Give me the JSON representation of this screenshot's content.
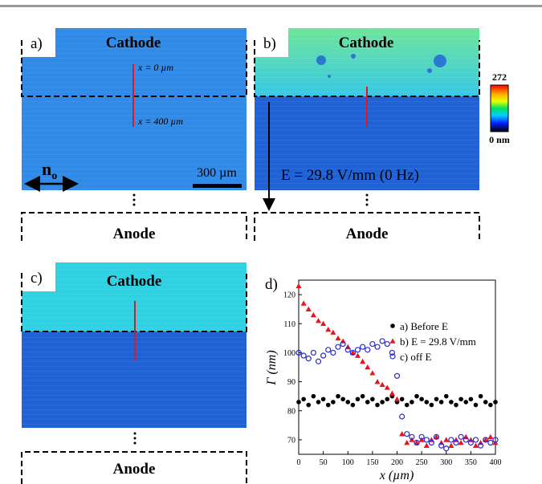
{
  "panels": {
    "a": {
      "label": "a)",
      "cathode": "Cathode",
      "anode": "Anode",
      "x_start": "x = 0 µm",
      "x_end": "x = 400 µm",
      "director": "n",
      "director_subscript": "o",
      "scale_bar": "300 µm"
    },
    "b": {
      "label": "b)",
      "cathode": "Cathode",
      "anode": "Anode",
      "field": "E = 29.8 V/mm (0 Hz)",
      "colorbar_max": "272",
      "colorbar_min": "0 nm"
    },
    "c": {
      "label": "c)",
      "cathode": "Cathode",
      "anode": "Anode"
    }
  },
  "chart_data": {
    "type": "scatter",
    "panel_label": "d)",
    "x_label": "x (µm)",
    "y_label": "Γ (nm)",
    "xlim": [
      0,
      400
    ],
    "ylim": [
      65,
      125
    ],
    "xticks": [
      0,
      50,
      100,
      150,
      200,
      250,
      300,
      350,
      400
    ],
    "yticks": [
      70,
      80,
      90,
      100,
      110,
      120
    ],
    "x": [
      0,
      10,
      20,
      30,
      40,
      50,
      60,
      70,
      80,
      90,
      100,
      110,
      120,
      130,
      140,
      150,
      160,
      170,
      180,
      190,
      200,
      210,
      220,
      230,
      240,
      250,
      260,
      270,
      280,
      290,
      300,
      310,
      320,
      330,
      340,
      350,
      360,
      370,
      380,
      390,
      400
    ],
    "series": [
      {
        "name": "a) Before E",
        "color": "#000000",
        "marker": "circle",
        "values": [
          83,
          84,
          82,
          85,
          83,
          84,
          82,
          83,
          85,
          84,
          83,
          82,
          84,
          85,
          83,
          84,
          82,
          83,
          84,
          85,
          83,
          84,
          82,
          83,
          85,
          84,
          83,
          82,
          84,
          83,
          85,
          83,
          82,
          84,
          83,
          84,
          82,
          85,
          83,
          82,
          83
        ]
      },
      {
        "name": "b) E = 29.8 V/mm",
        "color": "#e8141c",
        "marker": "triangle",
        "values": [
          123,
          117,
          115,
          113,
          111,
          110,
          108,
          107,
          105,
          104,
          102,
          100,
          99,
          97,
          95,
          93,
          90,
          89,
          88,
          86,
          84,
          72,
          69,
          70,
          69,
          70,
          68,
          70,
          71,
          69,
          70,
          68,
          70,
          69,
          71,
          70,
          68,
          69,
          70,
          71,
          69
        ]
      },
      {
        "name": "c) off E",
        "color": "#2a2ad0",
        "marker": "open-circle",
        "values": [
          100,
          99,
          98,
          100,
          97,
          99,
          101,
          100,
          102,
          103,
          101,
          100,
          101,
          102,
          101,
          103,
          102,
          104,
          103,
          100,
          92,
          78,
          72,
          71,
          69,
          71,
          70,
          69,
          71,
          68,
          67,
          70,
          69,
          71,
          70,
          69,
          70,
          68,
          70,
          69,
          70
        ]
      }
    ]
  }
}
